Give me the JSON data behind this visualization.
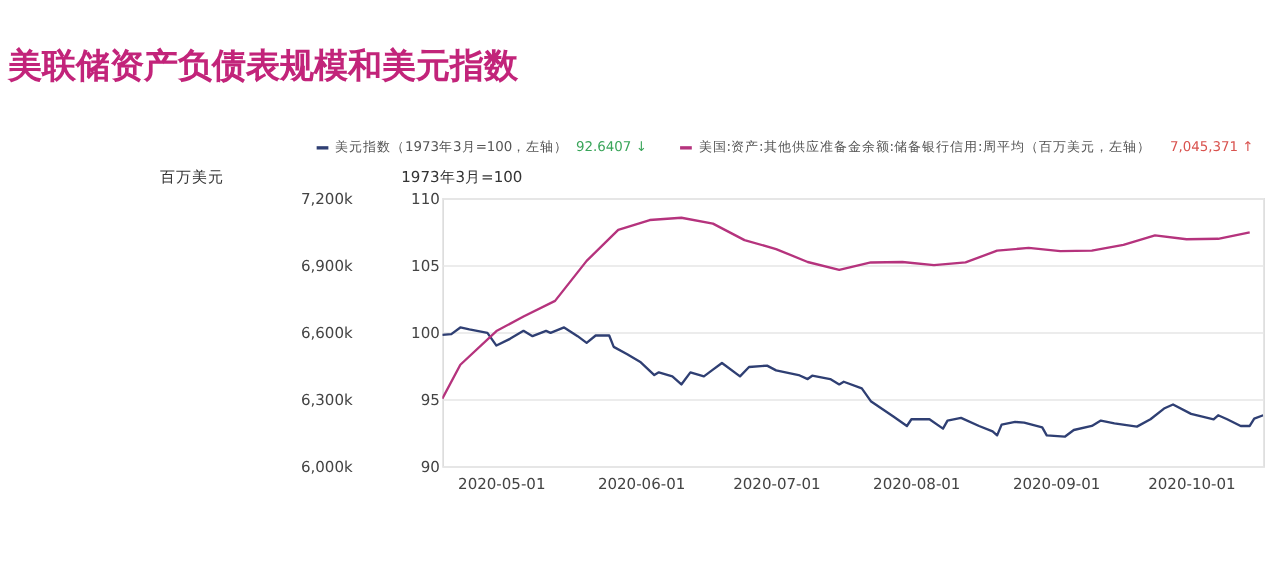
{
  "chart_data": {
    "type": "line",
    "title": "美联储资产负债表规模和美元指数",
    "ylabel": "1973年3月=100",
    "y2label": "百万美元",
    "annotations": [
      "92.6407 ↓",
      "7,045,371 ↑"
    ],
    "legend": "top left",
    "grid": "y",
    "line_style": "solid",
    "marker": "none",
    "xlim": [
      "2020-04-18",
      "2020-10-17"
    ],
    "xticks": [
      "2020-05-01",
      "2020-06-01",
      "2020-07-01",
      "2020-08-01",
      "2020-09-01",
      "2020-10-01"
    ],
    "ylim": [
      90,
      110
    ],
    "yticks": [
      90,
      95,
      100,
      105,
      110
    ],
    "y2lim": [
      6000000,
      7200000
    ],
    "y2ticks": [
      {
        "value": 6000000,
        "label": "6,000k"
      },
      {
        "value": 6300000,
        "label": "6,300k"
      },
      {
        "value": 6600000,
        "label": "6,600k"
      },
      {
        "value": 6900000,
        "label": "6,900k"
      },
      {
        "value": 7200000,
        "label": "7,200k"
      }
    ],
    "series": [
      {
        "name": "美元指数（1973年3月=100，左轴）",
        "color": "#2f3f73",
        "x": [
          "2020-04-18",
          "2020-04-20",
          "2020-04-22",
          "2020-04-24",
          "2020-04-28",
          "2020-04-30",
          "2020-05-03",
          "2020-05-06",
          "2020-05-08",
          "2020-05-11",
          "2020-05-12",
          "2020-05-15",
          "2020-05-18",
          "2020-05-20",
          "2020-05-22",
          "2020-05-25",
          "2020-05-26",
          "2020-05-29",
          "2020-06-01",
          "2020-06-04",
          "2020-06-05",
          "2020-06-08",
          "2020-06-10",
          "2020-06-12",
          "2020-06-15",
          "2020-06-17",
          "2020-06-19",
          "2020-06-23",
          "2020-06-25",
          "2020-06-29",
          "2020-07-01",
          "2020-07-06",
          "2020-07-08",
          "2020-07-09",
          "2020-07-13",
          "2020-07-15",
          "2020-07-16",
          "2020-07-20",
          "2020-07-22",
          "2020-07-27",
          "2020-07-30",
          "2020-07-31",
          "2020-08-04",
          "2020-08-07",
          "2020-08-08",
          "2020-08-11",
          "2020-08-15",
          "2020-08-18",
          "2020-08-19",
          "2020-08-20",
          "2020-08-23",
          "2020-08-25",
          "2020-08-29",
          "2020-08-30",
          "2020-09-03",
          "2020-09-05",
          "2020-09-09",
          "2020-09-11",
          "2020-09-14",
          "2020-09-19",
          "2020-09-22",
          "2020-09-25",
          "2020-09-27",
          "2020-10-01",
          "2020-10-06",
          "2020-10-07",
          "2020-10-09",
          "2020-10-12",
          "2020-10-14",
          "2020-10-15",
          "2020-10-17"
        ],
        "values": [
          99.8,
          99.85,
          100.35,
          100.2,
          99.95,
          99.0,
          99.5,
          100.1,
          99.7,
          100.1,
          99.95,
          100.35,
          99.7,
          99.2,
          99.75,
          99.75,
          98.9,
          98.35,
          97.75,
          96.8,
          97.0,
          96.7,
          96.1,
          97.0,
          96.7,
          97.2,
          97.7,
          96.7,
          97.4,
          97.5,
          97.15,
          96.8,
          96.5,
          96.75,
          96.5,
          96.1,
          96.3,
          95.8,
          94.85,
          93.7,
          93.0,
          93.5,
          93.5,
          92.8,
          93.4,
          93.6,
          93.0,
          92.6,
          92.3,
          93.1,
          93.3,
          93.25,
          92.9,
          92.3,
          92.2,
          92.7,
          93.0,
          93.4,
          93.2,
          92.95,
          93.5,
          94.3,
          94.6,
          93.9,
          93.5,
          93.8,
          93.5,
          93.0,
          93.0,
          93.55,
          93.8
        ]
      },
      {
        "name": "美国:资产:其他供应准备金余额:储备银行信用:周平均（百万美元，左轴）",
        "color": "#b5337d",
        "axis": "y2",
        "x": [
          "2020-04-18",
          "2020-04-22",
          "2020-04-30",
          "2020-05-06",
          "2020-05-13",
          "2020-05-20",
          "2020-05-27",
          "2020-06-03",
          "2020-06-10",
          "2020-06-17",
          "2020-06-24",
          "2020-07-01",
          "2020-07-08",
          "2020-07-15",
          "2020-07-22",
          "2020-07-29",
          "2020-08-05",
          "2020-08-12",
          "2020-08-19",
          "2020-08-26",
          "2020-09-02",
          "2020-09-09",
          "2020-09-16",
          "2020-09-23",
          "2020-09-30",
          "2020-10-07",
          "2020-10-14"
        ],
        "values": [
          6302000,
          6454000,
          6605000,
          6670000,
          6740000,
          6919000,
          7058000,
          7102000,
          7112000,
          7086000,
          7012000,
          6972000,
          6914000,
          6879000,
          6912000,
          6914000,
          6900000,
          6912000,
          6965000,
          6977000,
          6963000,
          6965000,
          6991000,
          7033000,
          7016000,
          7018000,
          7047000
        ]
      }
    ]
  }
}
